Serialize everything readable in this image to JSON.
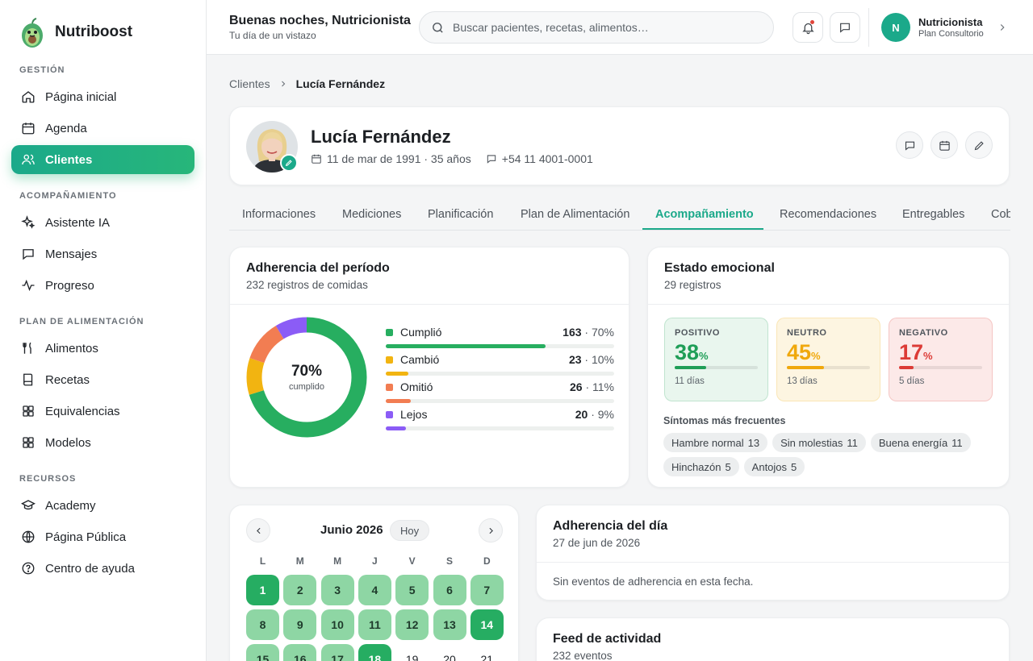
{
  "app": {
    "name": "Nutriboost"
  },
  "sidebar": {
    "sections": [
      {
        "title": "GESTIÓN",
        "items": [
          "Página inicial",
          "Agenda",
          "Clientes"
        ]
      },
      {
        "title": "ACOMPAÑAMIENTO",
        "items": [
          "Asistente IA",
          "Mensajes",
          "Progreso"
        ]
      },
      {
        "title": "PLAN DE ALIMENTACIÓN",
        "items": [
          "Alimentos",
          "Recetas",
          "Equivalencias",
          "Modelos"
        ]
      },
      {
        "title": "RECURSOS",
        "items": [
          "Academy",
          "Página Pública",
          "Centro de ayuda"
        ]
      }
    ],
    "active": "Clientes"
  },
  "header": {
    "title": "Buenas noches, Nutricionista",
    "subtitle": "Tu día de un vistazo",
    "search_placeholder": "Buscar pacientes, recetas, alimentos…",
    "user": {
      "initial": "N",
      "name": "Nutricionista",
      "plan": "Plan Consultorio"
    }
  },
  "breadcrumb": {
    "parent": "Clientes",
    "current": "Lucía Fernández"
  },
  "profile": {
    "name": "Lucía Fernández",
    "birth": "11 de mar de 1991 · 35 años",
    "phone": "+54 11 4001-0001"
  },
  "tabs": [
    "Informaciones",
    "Mediciones",
    "Planificación",
    "Plan de Alimentación",
    "Acompañamiento",
    "Recomendaciones",
    "Entregables",
    "Cob"
  ],
  "active_tab": "Acompañamiento",
  "adherence": {
    "title": "Adherencia del período",
    "subtitle": "232 registros de comidas",
    "center_value": "70%",
    "center_label": "cumplido",
    "chart_data": {
      "type": "pie",
      "categories": [
        "Cumplió",
        "Cambió",
        "Omitió",
        "Lejos"
      ],
      "values": [
        163,
        23,
        26,
        20
      ],
      "percents": [
        70,
        10,
        11,
        9
      ],
      "colors": [
        "#27ae60",
        "#f2b411",
        "#f27d52",
        "#8b5cf6"
      ]
    },
    "legend": [
      {
        "name": "Cumplió",
        "count": "163",
        "pct": "· 70%",
        "value": 70,
        "color": "#27ae60"
      },
      {
        "name": "Cambió",
        "count": "23",
        "pct": "· 10%",
        "value": 10,
        "color": "#f2b411"
      },
      {
        "name": "Omitió",
        "count": "26",
        "pct": "· 11%",
        "value": 11,
        "color": "#f27d52"
      },
      {
        "name": "Lejos",
        "count": "20",
        "pct": "· 9%",
        "value": 9,
        "color": "#8b5cf6"
      }
    ]
  },
  "emotional": {
    "title": "Estado emocional",
    "subtitle": "29 registros",
    "boxes": [
      {
        "label": "POSITIVO",
        "value": "38",
        "unit": "%",
        "days": "11 días",
        "pct": 38,
        "color": "#1f9e57",
        "bg": "#e9f6ee"
      },
      {
        "label": "NEUTRO",
        "value": "45",
        "unit": "%",
        "days": "13 días",
        "pct": 45,
        "color": "#f0a80c",
        "bg": "#fdf5e1"
      },
      {
        "label": "NEGATIVO",
        "value": "17",
        "unit": "%",
        "days": "5 días",
        "pct": 17,
        "color": "#dc3b36",
        "bg": "#fce9e8"
      }
    ],
    "symptoms_title": "Síntomas más frecuentes",
    "symptoms": [
      {
        "name": "Hambre normal",
        "count": "13"
      },
      {
        "name": "Sin molestias",
        "count": "11"
      },
      {
        "name": "Buena energía",
        "count": "11"
      },
      {
        "name": "Hinchazón",
        "count": "5"
      },
      {
        "name": "Antojos",
        "count": "5"
      }
    ]
  },
  "calendar": {
    "month": "Junio 2026",
    "today_label": "Hoy",
    "weekdays": [
      "L",
      "M",
      "M",
      "J",
      "V",
      "S",
      "D"
    ],
    "days": [
      {
        "n": "1",
        "s": "d"
      },
      {
        "n": "2",
        "s": "l"
      },
      {
        "n": "3",
        "s": "l"
      },
      {
        "n": "4",
        "s": "l"
      },
      {
        "n": "5",
        "s": "l"
      },
      {
        "n": "6",
        "s": "l"
      },
      {
        "n": "7",
        "s": "l"
      },
      {
        "n": "8",
        "s": "l"
      },
      {
        "n": "9",
        "s": "l"
      },
      {
        "n": "10",
        "s": "l"
      },
      {
        "n": "11",
        "s": "l"
      },
      {
        "n": "12",
        "s": "l"
      },
      {
        "n": "13",
        "s": "l"
      },
      {
        "n": "14",
        "s": "d"
      },
      {
        "n": "15",
        "s": "l"
      },
      {
        "n": "16",
        "s": "l"
      },
      {
        "n": "17",
        "s": "l"
      },
      {
        "n": "18",
        "s": "d"
      },
      {
        "n": "19",
        "s": "n"
      },
      {
        "n": "20",
        "s": "n"
      },
      {
        "n": "21",
        "s": "n"
      }
    ]
  },
  "day_adherence": {
    "title": "Adherencia del día",
    "date": "27 de jun de 2026",
    "empty": "Sin eventos de adherencia en esta fecha."
  },
  "feed": {
    "title": "Feed de actividad",
    "subtitle": "232 eventos"
  }
}
